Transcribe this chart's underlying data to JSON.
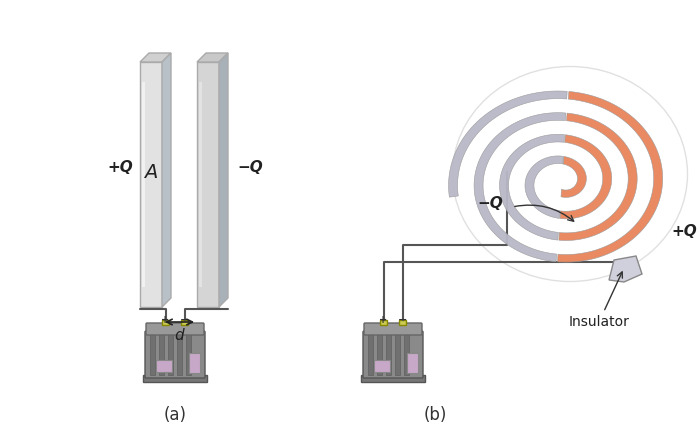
{
  "bg_color": "#ffffff",
  "wire_color": "#555555",
  "spiral_orange": "#e8845a",
  "spiral_gray": "#b8b8c8",
  "label_color": "#222222",
  "arrow_color": "#222222",
  "fig_label_color": "#333333",
  "panel_a_label": "(a)",
  "panel_b_label": "(b)",
  "plus_Q": "+Q",
  "minus_Q": "−Q",
  "area_label": "A",
  "dist_label": "d",
  "insulator_label": "Insulator"
}
